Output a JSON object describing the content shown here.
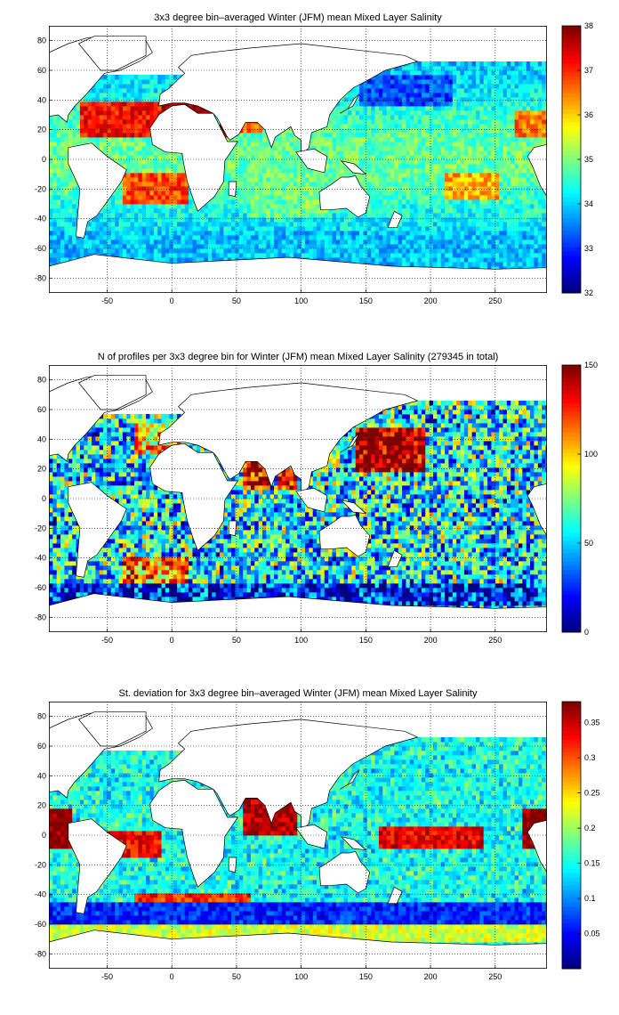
{
  "chart_data": [
    {
      "type": "heatmap",
      "title": "3x3 degree bin–averaged Winter (JFM) mean Mixed Layer Salinity",
      "xlim": [
        -95,
        290
      ],
      "ylim": [
        -90,
        90
      ],
      "x_ticks": [
        -50,
        0,
        50,
        100,
        150,
        200,
        250
      ],
      "y_ticks": [
        -80,
        -60,
        -40,
        -20,
        0,
        20,
        40,
        60,
        80
      ],
      "grid": true,
      "colormap": "jet",
      "colorbar": {
        "min": 32,
        "max": 38,
        "ticks": [
          32,
          33,
          34,
          35,
          36,
          37,
          38
        ]
      },
      "regions": [
        {
          "lon": [
            -72,
            -5
          ],
          "lat": [
            15,
            38
          ],
          "value": 37.2
        },
        {
          "lon": [
            -40,
            10
          ],
          "lat": [
            -30,
            -10
          ],
          "value": 36.8
        },
        {
          "lon": [
            -10,
            35
          ],
          "lat": [
            30,
            42
          ],
          "value": 38.0
        },
        {
          "lon": [
            35,
            45
          ],
          "lat": [
            15,
            28
          ],
          "value": 38.0
        },
        {
          "lon": [
            50,
            68
          ],
          "lat": [
            18,
            28
          ],
          "value": 36.6
        },
        {
          "lon": [
            210,
            250
          ],
          "lat": [
            -28,
            -12
          ],
          "value": 36.2
        },
        {
          "lon": [
            265,
            290
          ],
          "lat": [
            15,
            32
          ],
          "value": 36.5
        },
        {
          "lon": [
            145,
            215
          ],
          "lat": [
            35,
            55
          ],
          "value": 33.2
        },
        {
          "lon": [
            -95,
            290
          ],
          "lat": [
            -75,
            -50
          ],
          "value": 33.9
        },
        {
          "lon": [
            60,
            120
          ],
          "lat": [
            -40,
            -10
          ],
          "value": 34.9
        }
      ]
    },
    {
      "type": "heatmap",
      "title": "N of profiles per 3x3 degree bin for Winter (JFM) mean Mixed Layer Salinity  (279345 in total)",
      "xlim": [
        -95,
        290
      ],
      "ylim": [
        -90,
        90
      ],
      "x_ticks": [
        -50,
        0,
        50,
        100,
        150,
        200,
        250
      ],
      "y_ticks": [
        -80,
        -60,
        -40,
        -20,
        0,
        20,
        40,
        60,
        80
      ],
      "grid": true,
      "colormap": "jet",
      "colorbar": {
        "min": 0,
        "max": 150,
        "ticks": [
          0,
          50,
          100,
          150
        ]
      },
      "regions": [
        {
          "lon": [
            140,
            195
          ],
          "lat": [
            18,
            45
          ],
          "value": 150
        },
        {
          "lon": [
            55,
            75
          ],
          "lat": [
            5,
            25
          ],
          "value": 140
        },
        {
          "lon": [
            80,
            95
          ],
          "lat": [
            5,
            20
          ],
          "value": 130
        },
        {
          "lon": [
            -40,
            10
          ],
          "lat": [
            -60,
            -40
          ],
          "value": 110
        },
        {
          "lon": [
            -95,
            290
          ],
          "lat": [
            -72,
            -58
          ],
          "value": 20
        },
        {
          "lon": [
            -30,
            10
          ],
          "lat": [
            30,
            50
          ],
          "value": 100
        }
      ]
    },
    {
      "type": "heatmap",
      "title": "St. deviation for 3x3 degree bin–averaged Winter (JFM) mean Mixed Layer Salinity",
      "xlim": [
        -95,
        290
      ],
      "ylim": [
        -90,
        90
      ],
      "x_ticks": [
        -50,
        0,
        50,
        100,
        150,
        200,
        250
      ],
      "y_ticks": [
        -80,
        -60,
        -40,
        -20,
        0,
        20,
        40,
        60,
        80
      ],
      "grid": true,
      "colormap": "jet",
      "colorbar": {
        "min": 0,
        "max": 0.38,
        "ticks": [
          0.05,
          0.1,
          0.15,
          0.2,
          0.25,
          0.3,
          0.35
        ]
      },
      "regions": [
        {
          "lon": [
            -95,
            -80
          ],
          "lat": [
            -10,
            15
          ],
          "value": 0.38
        },
        {
          "lon": [
            270,
            290
          ],
          "lat": [
            -10,
            15
          ],
          "value": 0.38
        },
        {
          "lon": [
            55,
            95
          ],
          "lat": [
            0,
            25
          ],
          "value": 0.36
        },
        {
          "lon": [
            160,
            240
          ],
          "lat": [
            -10,
            5
          ],
          "value": 0.34
        },
        {
          "lon": [
            -50,
            -10
          ],
          "lat": [
            -15,
            0
          ],
          "value": 0.33
        },
        {
          "lon": [
            -30,
            60
          ],
          "lat": [
            -50,
            -42
          ],
          "value": 0.32
        },
        {
          "lon": [
            -95,
            290
          ],
          "lat": [
            -62,
            -48
          ],
          "value": 0.06
        },
        {
          "lon": [
            -95,
            290
          ],
          "lat": [
            -72,
            -62
          ],
          "value": 0.22
        }
      ]
    }
  ]
}
